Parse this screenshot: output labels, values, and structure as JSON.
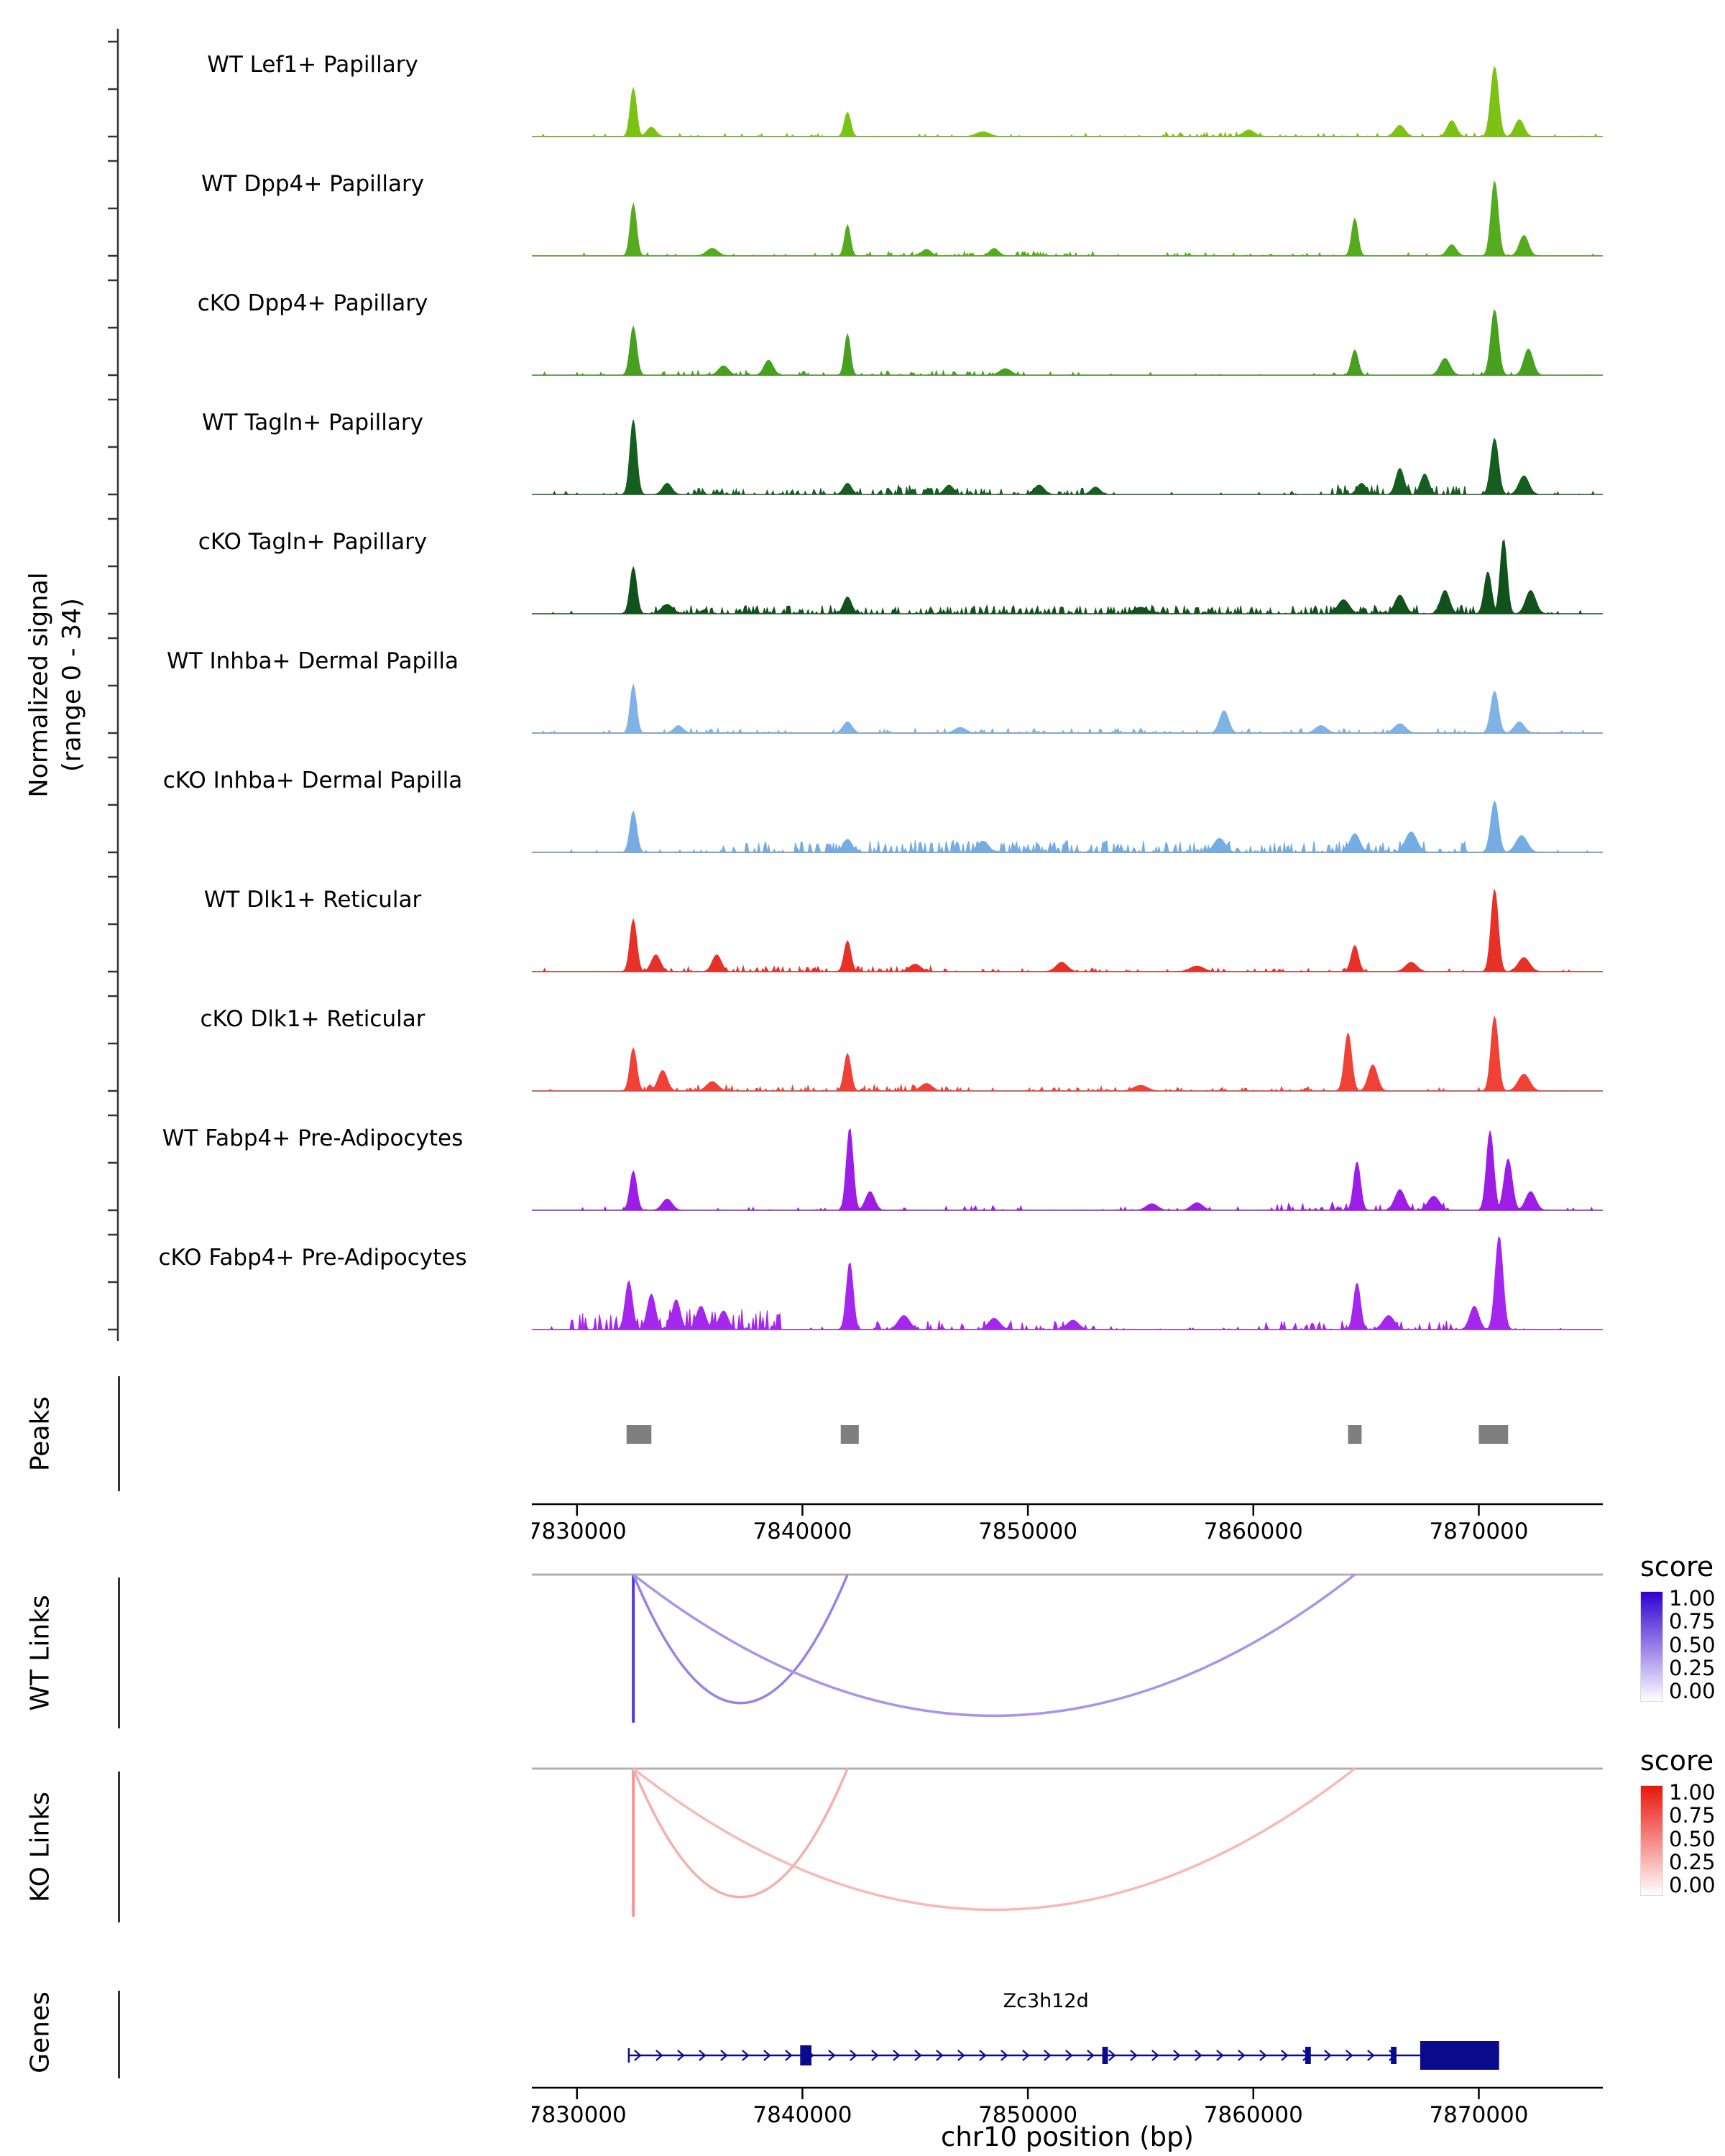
{
  "figure": {
    "ylabel_line1": "Normalized signal",
    "ylabel_line2": "(range 0 - 34)",
    "peaks_label": "Peaks",
    "wt_label": "WT Links",
    "ko_label": "KO Links",
    "genes_label": "Genes",
    "xlabel": "chr10 position (bp)"
  },
  "chart_data": {
    "type": "area",
    "title": "",
    "xlabel": "chr10 position (bp)",
    "ylabel": "Normalized signal (range 0 - 34)",
    "y_range": [
      0,
      34
    ],
    "x_domain": [
      7828000,
      7875500
    ],
    "x_ticks": [
      7830000,
      7840000,
      7850000,
      7860000,
      7870000
    ],
    "legend_ticks": [
      "1.00",
      "0.75",
      "0.50",
      "0.25",
      "0.00"
    ],
    "tracks": [
      {
        "label": "WT Lef1+ Papillary",
        "color": "#7CC213",
        "peaks": [
          [
            7832500,
            0.52,
            140
          ],
          [
            7833300,
            0.1,
            200
          ],
          [
            7842000,
            0.26,
            140
          ],
          [
            7848000,
            0.05,
            300
          ],
          [
            7859800,
            0.07,
            250
          ],
          [
            7866500,
            0.12,
            220
          ],
          [
            7868800,
            0.17,
            200
          ],
          [
            7870700,
            0.75,
            170
          ],
          [
            7871800,
            0.18,
            200
          ]
        ],
        "scatter": [
          [
            7828500,
            7875200,
            0.08,
            0.035
          ],
          [
            7856000,
            7862000,
            0.2,
            0.05
          ]
        ]
      },
      {
        "label": "WT Dpp4+ Papillary",
        "color": "#55AB1E",
        "peaks": [
          [
            7832500,
            0.56,
            140
          ],
          [
            7836000,
            0.08,
            250
          ],
          [
            7842000,
            0.33,
            130
          ],
          [
            7845500,
            0.07,
            200
          ],
          [
            7848500,
            0.08,
            200
          ],
          [
            7864500,
            0.4,
            140
          ],
          [
            7868800,
            0.12,
            200
          ],
          [
            7870700,
            0.8,
            160
          ],
          [
            7872000,
            0.22,
            200
          ]
        ],
        "scatter": [
          [
            7828500,
            7875200,
            0.08,
            0.035
          ],
          [
            7843000,
            7853000,
            0.25,
            0.05
          ],
          [
            7856000,
            7863000,
            0.15,
            0.04
          ]
        ]
      },
      {
        "label": "cKO Dpp4+ Papillary",
        "color": "#47A01E",
        "peaks": [
          [
            7832500,
            0.52,
            150
          ],
          [
            7836500,
            0.1,
            220
          ],
          [
            7838500,
            0.16,
            200
          ],
          [
            7842000,
            0.44,
            130
          ],
          [
            7849000,
            0.07,
            250
          ],
          [
            7864500,
            0.27,
            150
          ],
          [
            7868500,
            0.18,
            220
          ],
          [
            7870700,
            0.7,
            170
          ],
          [
            7872200,
            0.28,
            200
          ]
        ],
        "scatter": [
          [
            7828500,
            7875200,
            0.08,
            0.035
          ],
          [
            7833500,
            7841000,
            0.25,
            0.05
          ],
          [
            7843000,
            7850000,
            0.2,
            0.05
          ]
        ]
      },
      {
        "label": "WT Tagln+ Papillary",
        "color": "#155E1F",
        "peaks": [
          [
            7832500,
            0.8,
            150
          ],
          [
            7834000,
            0.12,
            200
          ],
          [
            7842000,
            0.12,
            180
          ],
          [
            7846500,
            0.1,
            200
          ],
          [
            7850500,
            0.1,
            220
          ],
          [
            7853000,
            0.08,
            200
          ],
          [
            7864800,
            0.12,
            200
          ],
          [
            7866500,
            0.28,
            180
          ],
          [
            7867600,
            0.22,
            180
          ],
          [
            7870700,
            0.6,
            170
          ],
          [
            7872000,
            0.2,
            220
          ]
        ],
        "scatter": [
          [
            7828500,
            7875200,
            0.08,
            0.035
          ],
          [
            7835000,
            7853000,
            0.3,
            0.07
          ],
          [
            7843000,
            7846000,
            0.3,
            0.1
          ],
          [
            7863500,
            7869500,
            0.45,
            0.12
          ]
        ]
      },
      {
        "label": "cKO Tagln+ Papillary",
        "color": "#11511B",
        "peaks": [
          [
            7832500,
            0.5,
            150
          ],
          [
            7834000,
            0.1,
            250
          ],
          [
            7842000,
            0.18,
            180
          ],
          [
            7855000,
            0.07,
            300
          ],
          [
            7864000,
            0.15,
            250
          ],
          [
            7866500,
            0.2,
            220
          ],
          [
            7868500,
            0.25,
            200
          ],
          [
            7870400,
            0.45,
            160
          ],
          [
            7871100,
            0.8,
            150
          ],
          [
            7872300,
            0.25,
            220
          ]
        ],
        "scatter": [
          [
            7828500,
            7875200,
            0.08,
            0.035
          ],
          [
            7833000,
            7869800,
            0.45,
            0.09
          ]
        ]
      },
      {
        "label": "WT Inhba+ Dermal Papilla",
        "color": "#7FB2E5",
        "peaks": [
          [
            7832500,
            0.52,
            140
          ],
          [
            7834500,
            0.08,
            200
          ],
          [
            7842000,
            0.12,
            200
          ],
          [
            7847000,
            0.06,
            250
          ],
          [
            7858700,
            0.24,
            200
          ],
          [
            7863000,
            0.08,
            250
          ],
          [
            7866500,
            0.1,
            250
          ],
          [
            7870700,
            0.45,
            170
          ],
          [
            7871800,
            0.12,
            220
          ]
        ],
        "scatter": [
          [
            7828500,
            7875200,
            0.08,
            0.035
          ],
          [
            7834000,
            7857000,
            0.2,
            0.05
          ],
          [
            7859500,
            7869000,
            0.2,
            0.05
          ]
        ]
      },
      {
        "label": "cKO Inhba+ Dermal Papilla",
        "color": "#74ACE3",
        "peaks": [
          [
            7832500,
            0.44,
            150
          ],
          [
            7842000,
            0.14,
            200
          ],
          [
            7848000,
            0.12,
            250
          ],
          [
            7858500,
            0.15,
            250
          ],
          [
            7864500,
            0.2,
            220
          ],
          [
            7867000,
            0.22,
            250
          ],
          [
            7870700,
            0.55,
            170
          ],
          [
            7871900,
            0.18,
            250
          ]
        ],
        "scatter": [
          [
            7828500,
            7875200,
            0.08,
            0.035
          ],
          [
            7836000,
            7869500,
            0.4,
            0.13
          ],
          [
            7844000,
            7852000,
            0.35,
            0.12
          ]
        ]
      },
      {
        "label": "WT Dlk1+ Reticular",
        "color": "#E73128",
        "peaks": [
          [
            7832500,
            0.56,
            150
          ],
          [
            7833500,
            0.18,
            200
          ],
          [
            7836200,
            0.18,
            200
          ],
          [
            7842000,
            0.33,
            150
          ],
          [
            7845000,
            0.08,
            250
          ],
          [
            7851500,
            0.1,
            250
          ],
          [
            7857500,
            0.06,
            300
          ],
          [
            7864500,
            0.28,
            160
          ],
          [
            7867000,
            0.1,
            250
          ],
          [
            7870700,
            0.88,
            160
          ],
          [
            7872000,
            0.15,
            250
          ]
        ],
        "scatter": [
          [
            7828500,
            7875200,
            0.08,
            0.035
          ],
          [
            7833000,
            7846000,
            0.3,
            0.06
          ],
          [
            7848000,
            7862000,
            0.15,
            0.04
          ]
        ]
      },
      {
        "label": "cKO Dlk1+ Reticular",
        "color": "#F04136",
        "peaks": [
          [
            7832500,
            0.46,
            150
          ],
          [
            7833800,
            0.22,
            200
          ],
          [
            7836000,
            0.1,
            250
          ],
          [
            7842000,
            0.4,
            150
          ],
          [
            7845500,
            0.08,
            250
          ],
          [
            7855000,
            0.06,
            300
          ],
          [
            7864200,
            0.62,
            160
          ],
          [
            7865300,
            0.28,
            200
          ],
          [
            7870700,
            0.8,
            160
          ],
          [
            7872000,
            0.18,
            250
          ]
        ],
        "scatter": [
          [
            7828500,
            7875200,
            0.08,
            0.035
          ],
          [
            7833000,
            7847000,
            0.3,
            0.07
          ],
          [
            7850000,
            7863000,
            0.2,
            0.05
          ]
        ]
      },
      {
        "label": "WT Fabp4+ Pre-Adipocytes",
        "color": "#9E1DE6",
        "peaks": [
          [
            7832500,
            0.42,
            150
          ],
          [
            7834000,
            0.12,
            220
          ],
          [
            7842100,
            0.88,
            150
          ],
          [
            7843000,
            0.2,
            200
          ],
          [
            7855500,
            0.07,
            250
          ],
          [
            7857500,
            0.08,
            250
          ],
          [
            7864600,
            0.52,
            150
          ],
          [
            7866500,
            0.22,
            220
          ],
          [
            7868000,
            0.15,
            250
          ],
          [
            7870500,
            0.85,
            160
          ],
          [
            7871300,
            0.55,
            180
          ],
          [
            7872300,
            0.2,
            220
          ]
        ],
        "scatter": [
          [
            7828500,
            7875200,
            0.08,
            0.035
          ],
          [
            7844000,
            7850000,
            0.15,
            0.05
          ],
          [
            7861000,
            7868500,
            0.3,
            0.09
          ]
        ]
      },
      {
        "label": "cKO Fabp4+ Pre-Adipocytes",
        "color": "#A526EC",
        "peaks": [
          [
            7832300,
            0.52,
            160
          ],
          [
            7833300,
            0.38,
            180
          ],
          [
            7834400,
            0.32,
            180
          ],
          [
            7835500,
            0.25,
            200
          ],
          [
            7836500,
            0.2,
            200
          ],
          [
            7842100,
            0.72,
            150
          ],
          [
            7844500,
            0.15,
            250
          ],
          [
            7848500,
            0.12,
            250
          ],
          [
            7852000,
            0.1,
            250
          ],
          [
            7864600,
            0.5,
            150
          ],
          [
            7866000,
            0.15,
            250
          ],
          [
            7869800,
            0.25,
            200
          ],
          [
            7870900,
            1.0,
            170
          ]
        ],
        "scatter": [
          [
            7828500,
            7875200,
            0.08,
            0.035
          ],
          [
            7829500,
            7839000,
            0.5,
            0.22
          ],
          [
            7843000,
            7853000,
            0.35,
            0.1
          ],
          [
            7860000,
            7869000,
            0.3,
            0.1
          ]
        ]
      }
    ],
    "peaks_track": {
      "color": "#7F7F7F",
      "intervals": [
        [
          7832200,
          7833300
        ],
        [
          7841700,
          7842500
        ],
        [
          7864200,
          7864800
        ],
        [
          7870000,
          7871300
        ]
      ]
    },
    "wt_links": {
      "legend_title": "score",
      "high_color": "#3000D0",
      "anchor": 7832500,
      "anchor_score": 0.8,
      "arcs": [
        {
          "from": 7832500,
          "to": 7842000,
          "score": 0.5,
          "apex": 0.84
        },
        {
          "from": 7832500,
          "to": 7864500,
          "score": 0.42,
          "apex": 0.92
        }
      ]
    },
    "ko_links": {
      "legend_title": "score",
      "high_color": "#E8160C",
      "anchor": 7832500,
      "anchor_score": 0.45,
      "arcs": [
        {
          "from": 7832500,
          "to": 7842000,
          "score": 0.35,
          "apex": 0.84
        },
        {
          "from": 7832500,
          "to": 7864500,
          "score": 0.3,
          "apex": 0.92
        }
      ]
    },
    "genes": {
      "name": "Zc3h12d",
      "color": "#0A0A8C",
      "strand": "+",
      "start": 7832300,
      "end": 7870900,
      "thick_start": 7867400,
      "thick_end": 7870900,
      "exons": [
        [
          7839900,
          7840400,
          28
        ],
        [
          7853300,
          7853550,
          24
        ],
        [
          7862300,
          7862550,
          24
        ],
        [
          7866100,
          7866350,
          24
        ]
      ],
      "label_pos": 7850800
    }
  }
}
